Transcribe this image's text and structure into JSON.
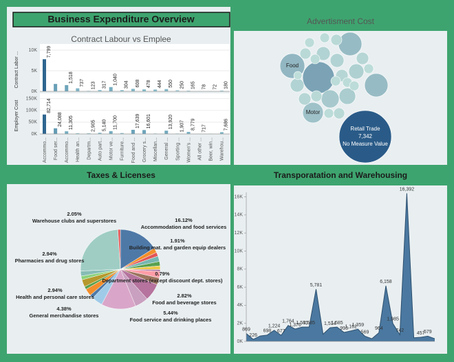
{
  "title": "Business Expenditure Overview",
  "chart_data": [
    {
      "type": "bar",
      "title": "Contract Labour vs Emplee",
      "categories": [
        "Accommo...",
        "Food ser...",
        "Accommo...",
        "Health an...",
        "Departm...",
        "Auto part...",
        "Motor ve...",
        "Furniture...",
        "Food and ...",
        "Grocery s...",
        "Miscellan...",
        "General ...",
        "Sporting ...",
        "Women's ...",
        "All other ...",
        "Beer, win...",
        "Warehou..."
      ],
      "colors": {
        "low": "#9fd6dc",
        "high": "#2f6690"
      },
      "series": [
        {
          "name": "Contract Labor ...",
          "values": [
            7799,
            1800,
            1518,
            737,
            123,
            317,
            1040,
            304,
            608,
            478,
            444,
            550,
            250,
            165,
            78,
            72,
            180
          ],
          "value_labels": [
            "7,799",
            null,
            "1,518",
            "737",
            "123",
            "317",
            "1,040",
            "304",
            "608",
            "478",
            "444",
            "550",
            "250",
            "165",
            "78",
            "72",
            "180"
          ],
          "ylim": [
            0,
            10500
          ],
          "yticks": [
            {
              "value": 0,
              "label": "0K"
            },
            {
              "value": 5000,
              "label": "5K"
            },
            {
              "value": 10000,
              "label": "10K"
            }
          ]
        },
        {
          "name": "Employer Cost",
          "values": [
            82714,
            24088,
            11305,
            3000,
            2905,
            5140,
            11700,
            4000,
            17639,
            16601,
            2000,
            13920,
            1907,
            8779,
            717,
            1500,
            7686
          ],
          "value_labels": [
            "82,714",
            "24,088",
            "11,305",
            null,
            "2,905",
            "5,140",
            "11,700",
            null,
            "17,639",
            "16,601",
            null,
            "13,920",
            "1,907",
            "8,779",
            "717",
            null,
            "7,686"
          ],
          "ylim": [
            0,
            155000
          ],
          "yticks": [
            {
              "value": 0,
              "label": "0K"
            },
            {
              "value": 50000,
              "label": "50K"
            },
            {
              "value": 100000,
              "label": "100K"
            },
            {
              "value": 150000,
              "label": "150K"
            }
          ]
        }
      ]
    },
    {
      "type": "bubble",
      "title": "Advertisment Cost",
      "categories": [
        "Retail Trade",
        "Food",
        null,
        "Motor",
        null,
        null,
        null,
        null,
        null,
        null,
        null,
        null,
        null,
        null,
        null,
        null,
        null,
        null,
        null,
        null,
        null,
        null,
        null,
        null,
        null,
        null,
        null,
        null
      ],
      "values": [
        7342,
        1650,
        2690,
        1140,
        1470,
        1470,
        860,
        730,
        510,
        510,
        325,
        250,
        250,
        325,
        510,
        410,
        615,
        410,
        410,
        250,
        250,
        250,
        250,
        180,
        250,
        325,
        250,
        325
      ],
      "value_labels": [
        "7,342",
        null,
        null,
        null,
        null,
        null,
        null,
        null,
        null,
        null,
        null,
        null,
        null,
        null,
        null,
        null,
        null,
        null,
        null,
        null,
        null,
        null,
        null,
        null,
        null,
        null,
        null,
        null
      ],
      "annotation": "No Measure Value",
      "colors": {
        "low": "#cbe9e1",
        "high": "#2a5b88"
      }
    },
    {
      "type": "pie",
      "title": "Taxes & Licenses",
      "categories": [
        "Accommodation and food services",
        "Building mat. and garden equip dealers",
        null,
        null,
        null,
        null,
        "Department stores (except discount dept. stores)",
        null,
        "Food and beverage stores",
        null,
        "Food service and drinking places",
        null,
        "General merchandise stores",
        null,
        "Health and personal care stores",
        null,
        "Pharmacies and drug stores",
        null,
        "Warehouse clubs and superstores",
        null,
        null
      ],
      "values": [
        16.12,
        1.91,
        1.6,
        2.2,
        1.8,
        1.5,
        0.79,
        2.6,
        2.82,
        7.0,
        5.44,
        14.0,
        4.38,
        1.5,
        2.94,
        1.2,
        2.94,
        1.5,
        2.05,
        24.71,
        1.0
      ],
      "value_labels": [
        "16.12%",
        "1.91%",
        null,
        null,
        null,
        null,
        "0.79%",
        null,
        "2.82%",
        null,
        "5.44%",
        null,
        "4.38%",
        null,
        "2.94%",
        null,
        "2.94%",
        null,
        "2.05%",
        null,
        null
      ],
      "colors": [
        "#4e79a7",
        "#f28e2b",
        "#e15759",
        "#76b7b2",
        "#59a14f",
        "#edc948",
        "#b07aa1",
        "#ff9da7",
        "#9c755f",
        "#b5739d",
        "#c9a0c0",
        "#d9a6c9",
        "#a0cbe8",
        "#4e79a7",
        "#f28e2b",
        "#59a14f",
        "#b6992d",
        "#8cd17d",
        "#86bcb6",
        "#9fcdc4",
        "#e15759"
      ]
    },
    {
      "type": "area",
      "title": "Transporatation and Warehousing",
      "values": [
        869,
        226,
        600,
        698,
        1224,
        677,
        1764,
        1370,
        1585,
        1585,
        5781,
        800,
        1514,
        1585,
        993,
        1162,
        1359,
        569,
        300,
        964,
        6158,
        1985,
        742,
        16392,
        400,
        457,
        579,
        300
      ],
      "value_labels": [
        "869",
        "226",
        null,
        "698",
        "1,224",
        "677",
        "1,764",
        "1,370",
        "1,585",
        "1,585",
        "5,781",
        null,
        "1,514",
        "1,585",
        "993",
        "1,162",
        "1,359",
        "569",
        null,
        "964",
        "6,158",
        "1,985",
        "742",
        "16,392",
        null,
        "457",
        "579",
        null
      ],
      "color": "#4a78a0",
      "line_color": "#2c4f6e",
      "ylim": [
        0,
        16500
      ],
      "yticks": [
        {
          "value": 0,
          "label": "0K"
        },
        {
          "value": 2000,
          "label": "2K"
        },
        {
          "value": 4000,
          "label": "4K"
        },
        {
          "value": 6000,
          "label": "6K"
        },
        {
          "value": 8000,
          "label": "8K"
        },
        {
          "value": 10000,
          "label": "10K"
        },
        {
          "value": 12000,
          "label": "12K"
        },
        {
          "value": 14000,
          "label": "14K"
        },
        {
          "value": 16000,
          "label": "16K"
        }
      ]
    }
  ]
}
